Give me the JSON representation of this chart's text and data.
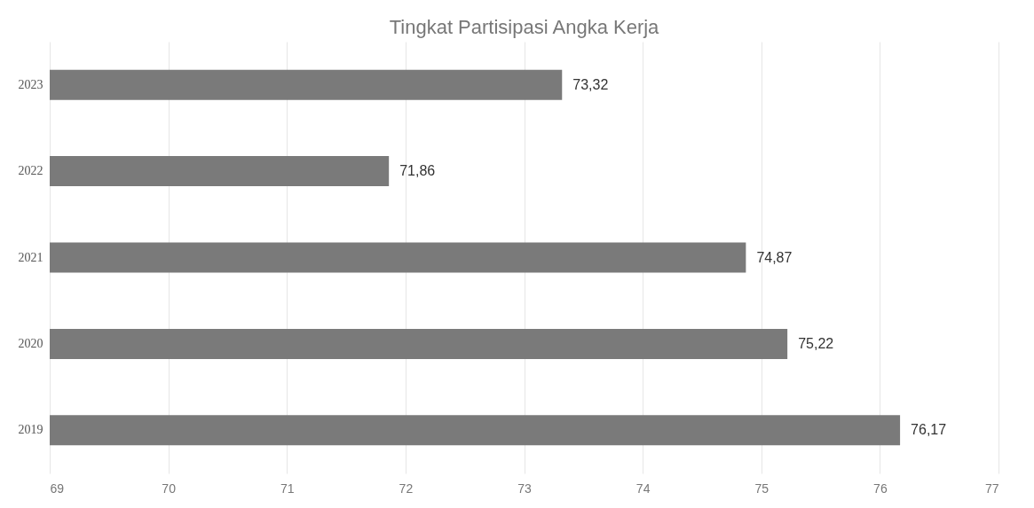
{
  "chart_data": {
    "type": "bar",
    "orientation": "horizontal",
    "title": "Tingkat Partisipasi Angka Kerja",
    "categories": [
      "2023",
      "2022",
      "2021",
      "2020",
      "2019"
    ],
    "values": [
      73.32,
      71.86,
      74.87,
      75.22,
      76.17
    ],
    "value_labels": [
      "73,32",
      "71,86",
      "74,87",
      "75,22",
      "76,17"
    ],
    "color": "#7a7a7a",
    "xlim": [
      69,
      77
    ],
    "xticks": [
      69,
      70,
      71,
      72,
      73,
      74,
      75,
      76,
      77
    ],
    "grid": "x",
    "legend": false
  }
}
